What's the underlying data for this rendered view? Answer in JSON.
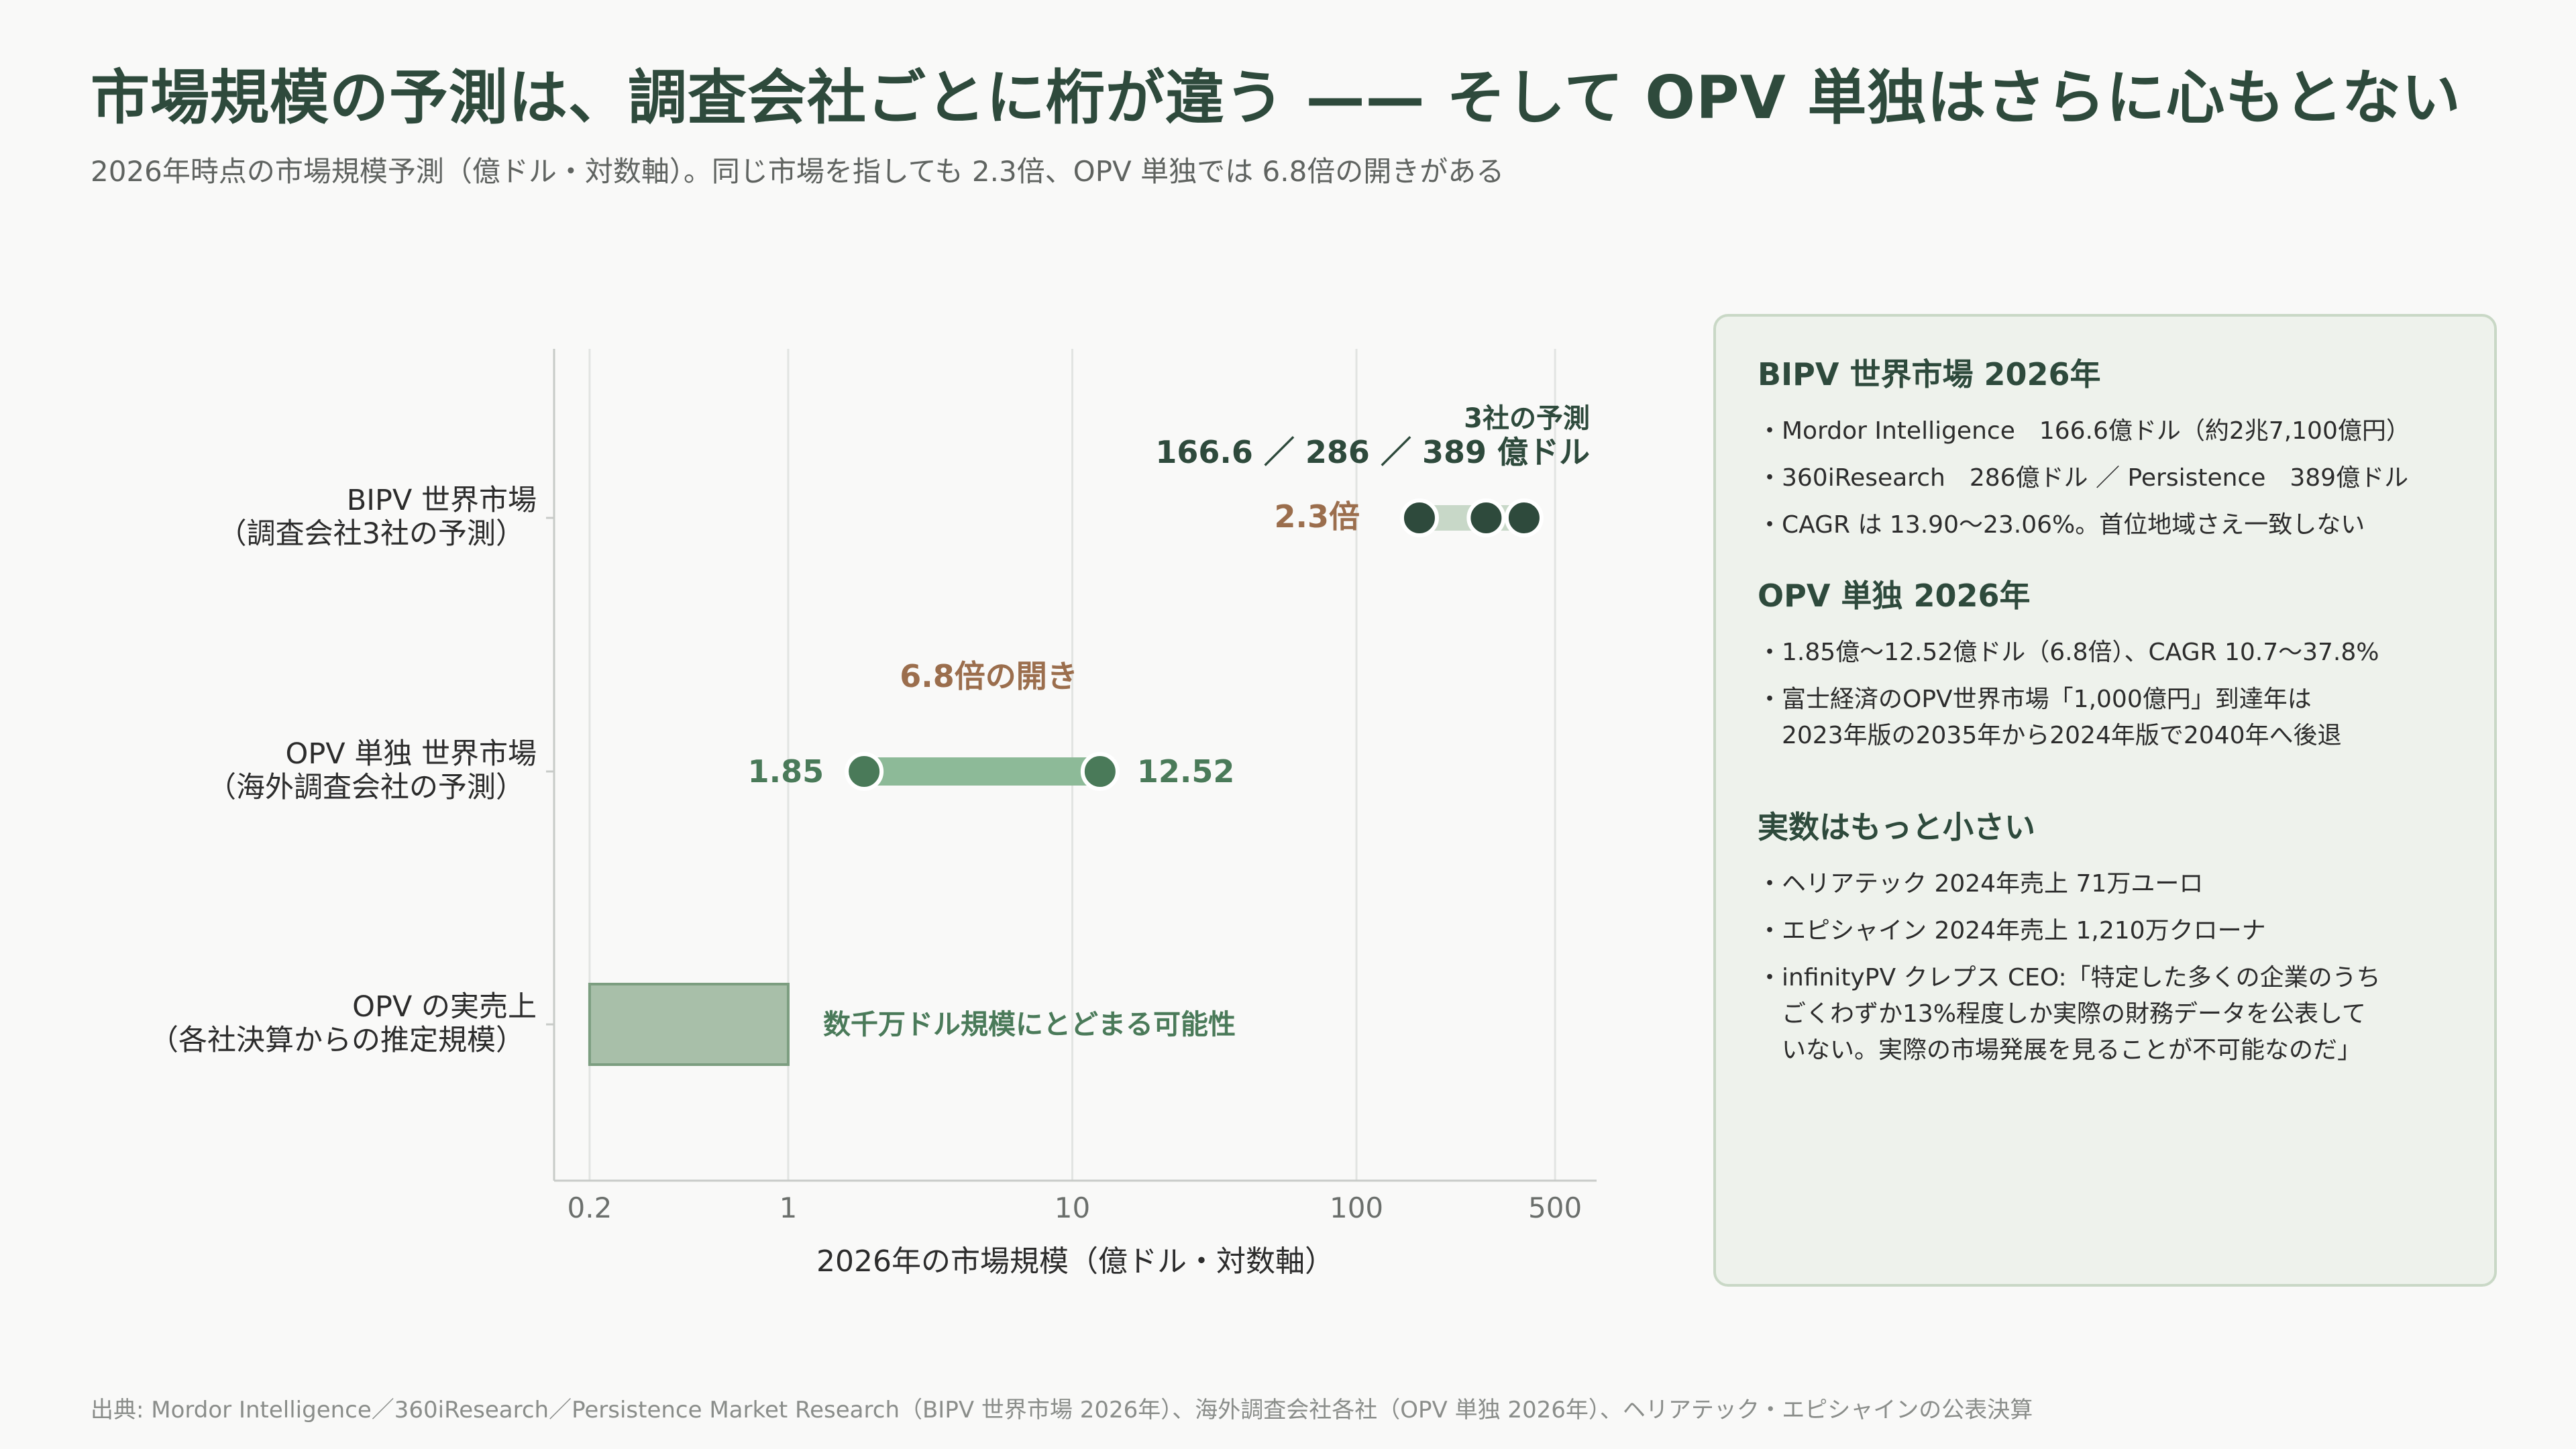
{
  "header": {
    "title": "市場規模の予測は、調査会社ごとに桁が違う —— そして OPV 単独はさらに心もとない",
    "subtitle": "2026年時点の市場規模予測（億ドル・対数軸）。同じ市場を指しても 2.3倍、OPV 単独では 6.8倍の開きがある"
  },
  "chart_data": {
    "type": "range-dot (log scale)",
    "x_scale": "log",
    "xlim": [
      0.15,
      700
    ],
    "xticks": [
      0.2,
      1,
      10,
      100,
      500
    ],
    "xtick_labels": [
      "0.2",
      "1",
      "10",
      "100",
      "500"
    ],
    "xlabel": "2026年の市場規模（億ドル・対数軸）",
    "grid": "vertical",
    "categories": [
      {
        "label": [
          "BIPV 世界市場",
          "（調査会社3社の予測）"
        ]
      },
      {
        "label": [
          "OPV 単独 世界市場",
          "（海外調査会社の予測）"
        ]
      },
      {
        "label": [
          "OPV の実売上",
          "（各社決算からの推定規模）"
        ]
      }
    ],
    "rows": [
      {
        "kind": "dots",
        "values": [
          166.6,
          286,
          389
        ],
        "range": [
          166.6,
          389
        ],
        "ratio_label": "2.3倍",
        "annotation_line1": "3社の予測",
        "annotation_line2": "166.6 ／ 286 ／ 389 億ドル"
      },
      {
        "kind": "dots",
        "values": [
          1.85,
          12.52
        ],
        "range": [
          1.85,
          12.52
        ],
        "min_label": "1.85",
        "max_label": "12.52",
        "ratio_label": "6.8倍の開き"
      },
      {
        "kind": "bar",
        "range": [
          0.2,
          1
        ],
        "annotation": "数千万ドル規模にとどまる可能性"
      }
    ],
    "colors": {
      "dot_dark": "#2e4a3c",
      "dot_green": "#4a7a59",
      "range_bar_light": "#c8d8c8",
      "range_bar_green": "#8dba98",
      "box_fill": "#a8bfa9",
      "box_stroke": "#7c9e80",
      "ratio_brown": "#9b6e4d",
      "label_green": "#4a7a59",
      "grid": "#e2e4e2",
      "axis": "#c8cbc8"
    }
  },
  "panel": {
    "sections": [
      {
        "title": "BIPV 世界市場 2026年",
        "items": [
          "・Mordor Intelligence　166.6億ドル（約2兆7,100億円）",
          "・360iResearch　286億ドル ／ Persistence　389億ドル",
          "・CAGR は 13.90〜23.06%。首位地域さえ一致しない"
        ]
      },
      {
        "title": "OPV 単独 2026年",
        "items": [
          "・1.85億〜12.52億ドル（6.8倍）、CAGR 10.7〜37.8%",
          "・富士経済のOPV世界市場「1,000億円」到達年は\n　2023年版の2035年から2024年版で2040年へ後退"
        ]
      },
      {
        "title": "実数はもっと小さい",
        "items": [
          "・ヘリアテック 2024年売上 71万ユーロ",
          "・エピシャイン 2024年売上 1,210万クローナ",
          "・infinityPV クレプス CEO:「特定した多くの企業のうち\n　ごくわずか13%程度しか実際の財務データを公表して\n　いない。実際の市場発展を見ることが不可能なのだ」"
        ]
      }
    ]
  },
  "footer": {
    "source": "出典: Mordor Intelligence／360iResearch／Persistence Market Research（BIPV 世界市場 2026年）、海外調査会社各社（OPV 単独 2026年）、ヘリアテック・エピシャインの公表決算"
  }
}
